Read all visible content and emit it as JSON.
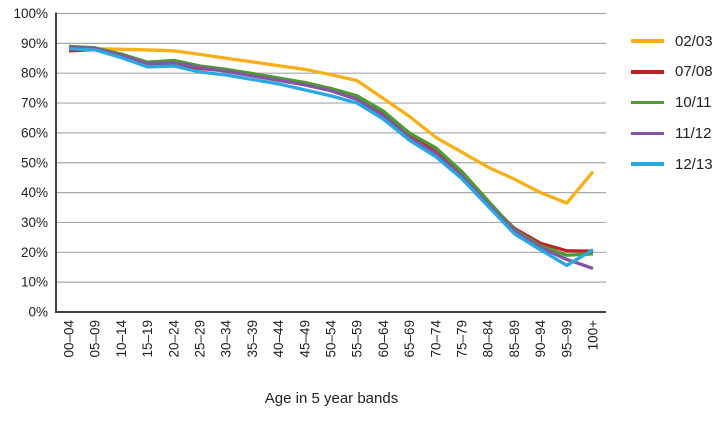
{
  "colors": {
    "grid": "#A7A9AC",
    "axis": "#414042",
    "text": "#231F20",
    "background": "#FFFFFF"
  },
  "xaxis": {
    "title": "Age in 5 year bands"
  },
  "yaxis": {
    "tick_labels": [
      "0%",
      "10%",
      "20%",
      "30%",
      "40%",
      "50%",
      "60%",
      "70%",
      "80%",
      "90%",
      "100%"
    ]
  },
  "legend": {
    "entries": [
      "02/03",
      "07/08",
      "10/11",
      "11/12",
      "12/13"
    ]
  },
  "chart_data": {
    "type": "line",
    "title": "",
    "xlabel": "Age in 5 year bands",
    "ylabel": "",
    "ylim": [
      0,
      100
    ],
    "ytick_step": 10,
    "ytick_format": "percent",
    "grid": "horizontal",
    "legend_position": "right",
    "categories": [
      "00–04",
      "05–09",
      "10–14",
      "15–19",
      "20–24",
      "25–29",
      "30–34",
      "35–39",
      "40–44",
      "45–49",
      "50–54",
      "55–59",
      "60–64",
      "65–69",
      "70–74",
      "75–79",
      "80–84",
      "85–89",
      "90–94",
      "95–99",
      "100+"
    ],
    "series": [
      {
        "name": "02/03",
        "color": "#FAAE17",
        "values": [
          88.4,
          88.2,
          88.0,
          87.8,
          87.5,
          86.3,
          85.0,
          83.8,
          82.5,
          81.3,
          79.5,
          77.5,
          71.5,
          65.5,
          58.5,
          53.5,
          48.5,
          44.5,
          40.0,
          36.5,
          47.0
        ]
      },
      {
        "name": "07/08",
        "color": "#C02026",
        "values": [
          87.5,
          87.9,
          85.7,
          82.9,
          83.1,
          81.6,
          80.8,
          79.4,
          78.0,
          76.4,
          74.4,
          71.9,
          66.3,
          58.9,
          53.7,
          46.0,
          36.5,
          28.0,
          23.0,
          20.5,
          20.4
        ]
      },
      {
        "name": "10/11",
        "color": "#4E9C2F",
        "values": [
          89.0,
          88.5,
          86.4,
          83.7,
          84.3,
          82.4,
          81.3,
          79.9,
          78.4,
          76.9,
          74.9,
          72.4,
          67.3,
          59.9,
          55.0,
          47.0,
          37.2,
          27.6,
          22.2,
          19.0,
          19.5
        ]
      },
      {
        "name": "11/12",
        "color": "#8355A2",
        "values": [
          88.7,
          88.3,
          86.0,
          83.2,
          83.5,
          81.9,
          80.6,
          79.1,
          77.6,
          76.1,
          74.1,
          71.2,
          65.8,
          58.4,
          53.2,
          45.5,
          36.0,
          27.2,
          21.6,
          17.6,
          14.6
        ]
      },
      {
        "name": "12/13",
        "color": "#29A9E1",
        "values": [
          88.2,
          87.8,
          85.2,
          82.1,
          82.4,
          80.4,
          79.4,
          77.9,
          76.4,
          74.4,
          72.4,
          70.0,
          64.6,
          57.5,
          52.0,
          44.6,
          35.4,
          26.2,
          20.8,
          15.6,
          20.9
        ]
      }
    ]
  }
}
